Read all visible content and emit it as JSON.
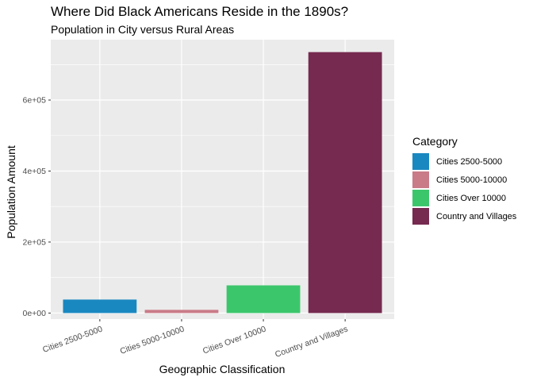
{
  "chart_data": {
    "type": "bar",
    "title": "Where Did Black Americans Reside in the 1890s?",
    "subtitle": "Population in City versus Rural Areas",
    "xlabel": "Geographic Classification",
    "ylabel": "Population Amount",
    "categories": [
      "Cities 2500-5000",
      "Cities 5000-10000",
      "Cities Over 10000",
      "Country and Villages"
    ],
    "values": [
      38000,
      9000,
      78000,
      735000
    ],
    "colors": [
      "#1a88c0",
      "#c97b88",
      "#3cc66c",
      "#762a50"
    ],
    "ylim": [
      -17000,
      770000
    ],
    "yticks": [
      0,
      200000,
      400000,
      600000
    ],
    "ytick_labels": [
      "0e+00",
      "2e+05",
      "4e+05",
      "6e+05"
    ],
    "grid": true,
    "legend": {
      "title": "Category",
      "position": "right",
      "items": [
        "Cities 2500-5000",
        "Cities 5000-10000",
        "Cities Over 10000",
        "Country and Villages"
      ]
    }
  }
}
